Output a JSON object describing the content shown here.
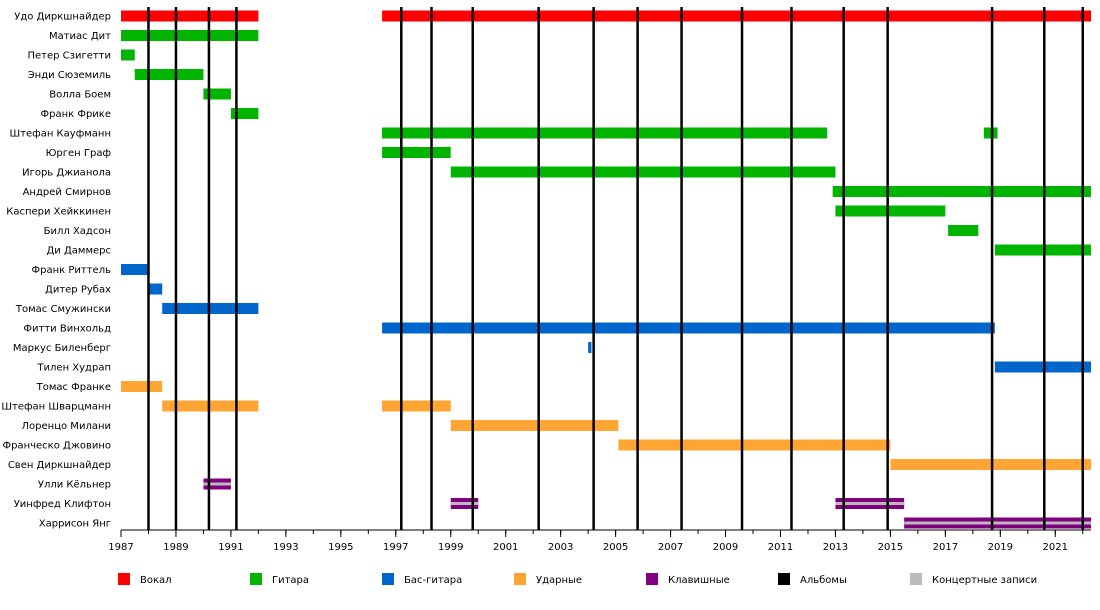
{
  "chart_data": {
    "type": "timeline",
    "title": "",
    "xlim": [
      1987,
      2022.3
    ],
    "x_ticks": [
      "1987",
      "1989",
      "1991",
      "1993",
      "1995",
      "1997",
      "1999",
      "2001",
      "2003",
      "2005",
      "2007",
      "2009",
      "2011",
      "2013",
      "2015",
      "2017",
      "2019",
      "2021"
    ],
    "roles": {
      "vocal": "#ff0000",
      "guitar": "#00b400",
      "bass": "#0066cc",
      "drums": "#ffa533",
      "keys": "#800080",
      "albums": "#000000",
      "live": "#bbbbbb"
    },
    "members": [
      {
        "name": "Удо Диркшнайдер",
        "periods": [
          {
            "role": "vocal",
            "start": 1987.0,
            "end": 1992.0
          },
          {
            "role": "vocal",
            "start": 1996.5,
            "end": 2022.3
          }
        ]
      },
      {
        "name": "Матиас Дит",
        "periods": [
          {
            "role": "guitar",
            "start": 1987.0,
            "end": 1992.0
          }
        ]
      },
      {
        "name": "Петер Сзигетти",
        "periods": [
          {
            "role": "guitar",
            "start": 1987.0,
            "end": 1987.5
          }
        ]
      },
      {
        "name": "Энди Сюземиль",
        "periods": [
          {
            "role": "guitar",
            "start": 1987.5,
            "end": 1990.0
          }
        ]
      },
      {
        "name": "Волла Боем",
        "periods": [
          {
            "role": "guitar",
            "start": 1990.0,
            "end": 1991.0
          }
        ]
      },
      {
        "name": "Франк Фрике",
        "periods": [
          {
            "role": "guitar",
            "start": 1991.0,
            "end": 1992.0
          }
        ]
      },
      {
        "name": "Штефан Кауфманн",
        "periods": [
          {
            "role": "guitar",
            "start": 1996.5,
            "end": 2012.7
          },
          {
            "role": "guitar",
            "start": 2018.4,
            "end": 2018.9
          }
        ]
      },
      {
        "name": "Юрген Граф",
        "periods": [
          {
            "role": "guitar",
            "start": 1996.5,
            "end": 1999.0
          }
        ]
      },
      {
        "name": "Игорь Джианола",
        "periods": [
          {
            "role": "guitar",
            "start": 1999.0,
            "end": 2013.0
          }
        ]
      },
      {
        "name": "Андрей Смирнов",
        "periods": [
          {
            "role": "guitar",
            "start": 2012.9,
            "end": 2022.3
          }
        ]
      },
      {
        "name": "Каспери Хейккинен",
        "periods": [
          {
            "role": "guitar",
            "start": 2013.0,
            "end": 2017.0
          }
        ]
      },
      {
        "name": "Билл Хадсон",
        "periods": [
          {
            "role": "guitar",
            "start": 2017.1,
            "end": 2018.2
          }
        ]
      },
      {
        "name": "Ди Даммерс",
        "periods": [
          {
            "role": "guitar",
            "start": 2018.8,
            "end": 2022.3
          }
        ]
      },
      {
        "name": "Франк Риттель",
        "periods": [
          {
            "role": "bass",
            "start": 1987.0,
            "end": 1988.0
          }
        ]
      },
      {
        "name": "Дитер Рубах",
        "periods": [
          {
            "role": "bass",
            "start": 1988.0,
            "end": 1988.5
          }
        ]
      },
      {
        "name": "Томас Смужински",
        "periods": [
          {
            "role": "bass",
            "start": 1988.5,
            "end": 1992.0
          }
        ]
      },
      {
        "name": "Фитти Винхольд",
        "periods": [
          {
            "role": "bass",
            "start": 1996.5,
            "end": 2018.8
          }
        ]
      },
      {
        "name": "Маркус Биленберг",
        "periods": [
          {
            "role": "bass",
            "start": 2004.0,
            "end": 2004.12
          }
        ]
      },
      {
        "name": "Тилен Худрап",
        "periods": [
          {
            "role": "bass",
            "start": 2018.8,
            "end": 2022.3
          }
        ]
      },
      {
        "name": "Томас Франке",
        "periods": [
          {
            "role": "drums",
            "start": 1987.0,
            "end": 1988.5
          }
        ]
      },
      {
        "name": "Штефан Шварцманн",
        "periods": [
          {
            "role": "drums",
            "start": 1988.5,
            "end": 1992.0
          },
          {
            "role": "drums",
            "start": 1996.5,
            "end": 1999.0
          }
        ]
      },
      {
        "name": "Лоренцо Милани",
        "periods": [
          {
            "role": "drums",
            "start": 1999.0,
            "end": 2005.1
          }
        ]
      },
      {
        "name": "Франческо Джовино",
        "periods": [
          {
            "role": "drums",
            "start": 2005.1,
            "end": 2015.0
          }
        ]
      },
      {
        "name": "Свен Диркшнайдер",
        "periods": [
          {
            "role": "drums",
            "start": 2015.0,
            "end": 2022.3
          }
        ]
      },
      {
        "name": "Улли Кёльнер",
        "periods": [
          {
            "role": "keys",
            "start": 1990.0,
            "end": 1991.0
          }
        ]
      },
      {
        "name": "Уинфред Клифтон",
        "periods": [
          {
            "role": "keys",
            "start": 1999.0,
            "end": 2000.0
          },
          {
            "role": "keys",
            "start": 2013.0,
            "end": 2015.5
          }
        ]
      },
      {
        "name": "Харрисон Янг",
        "periods": [
          {
            "role": "keys",
            "start": 2015.5,
            "end": 2022.3
          }
        ]
      }
    ],
    "live_records": [
      {
        "member": "Улли Кёльнер",
        "start": 1990.0,
        "end": 1991.0
      },
      {
        "member": "Уинфред Клифтон",
        "start": 1999.0,
        "end": 2000.0
      },
      {
        "member": "Уинфред Клифтон",
        "start": 2013.0,
        "end": 2015.5
      },
      {
        "member": "Харрисон Янг",
        "start": 2015.5,
        "end": 2022.3
      }
    ],
    "album_years": [
      1988.0,
      1989.0,
      1990.2,
      1991.2,
      1997.2,
      1998.3,
      1999.8,
      2002.2,
      2004.2,
      2005.8,
      2007.4,
      2009.6,
      2011.4,
      2013.3,
      2014.9,
      2018.7,
      2020.6,
      2022.0
    ],
    "legend": [
      {
        "role": "vocal",
        "label": "Вокал"
      },
      {
        "role": "guitar",
        "label": "Гитара"
      },
      {
        "role": "bass",
        "label": "Бас-гитара"
      },
      {
        "role": "drums",
        "label": "Ударные"
      },
      {
        "role": "keys",
        "label": "Клавишные"
      },
      {
        "role": "albums",
        "label": "Альбомы"
      },
      {
        "role": "live",
        "label": "Концертные записи"
      }
    ]
  }
}
